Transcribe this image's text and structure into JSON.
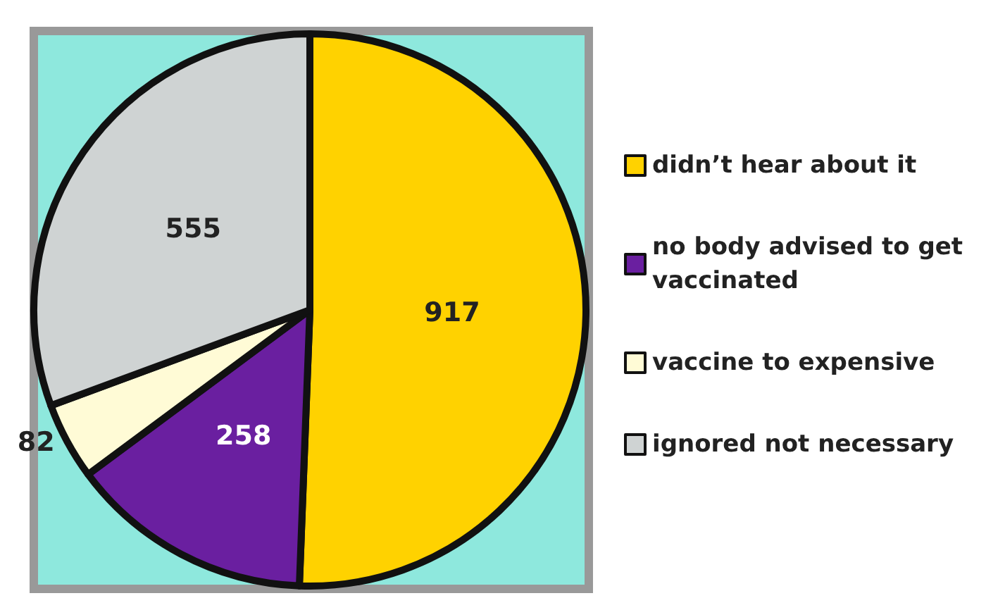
{
  "chart_data": {
    "type": "pie",
    "categories": [
      "didn’t hear about it",
      "no body advised to get vaccinated",
      "vaccine to expensive",
      "ignored not necessary"
    ],
    "values": [
      917,
      258,
      82,
      555
    ],
    "colors": [
      "#ffd200",
      "#6a1fa0",
      "#fffbd6",
      "#cfd3d3"
    ],
    "data_labels": true,
    "legend": "right"
  }
}
